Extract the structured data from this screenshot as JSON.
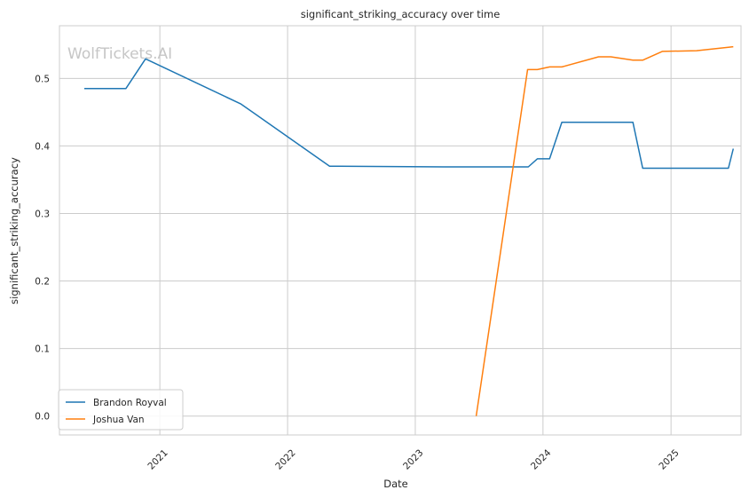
{
  "chart_data": {
    "type": "line",
    "title": "significant_striking_accuracy over time",
    "xlabel": "Date",
    "ylabel": "significant_striking_accuracy",
    "watermark": "WolfTickets.AI",
    "xlim": [
      "2020-03-20",
      "2025-07-20"
    ],
    "ylim": [
      -0.028,
      0.578
    ],
    "x_ticks": [
      {
        "date": "2021-01-01",
        "label": "2021"
      },
      {
        "date": "2022-01-01",
        "label": "2022"
      },
      {
        "date": "2023-01-01",
        "label": "2023"
      },
      {
        "date": "2024-01-01",
        "label": "2024"
      },
      {
        "date": "2025-01-01",
        "label": "2025"
      }
    ],
    "y_ticks": [
      {
        "value": 0.0,
        "label": "0.0"
      },
      {
        "value": 0.1,
        "label": "0.1"
      },
      {
        "value": 0.2,
        "label": "0.2"
      },
      {
        "value": 0.3,
        "label": "0.3"
      },
      {
        "value": 0.4,
        "label": "0.4"
      },
      {
        "value": 0.5,
        "label": "0.5"
      }
    ],
    "grid": true,
    "legend_position": "lower-left",
    "series": [
      {
        "name": "Brandon Royval",
        "color": "#1f77b4",
        "points": [
          [
            "2020-05-30",
            0.485
          ],
          [
            "2020-09-26",
            0.485
          ],
          [
            "2020-11-21",
            0.529
          ],
          [
            "2021-08-21",
            0.462
          ],
          [
            "2022-05-01",
            0.37
          ],
          [
            "2023-03-25",
            0.369
          ],
          [
            "2023-11-20",
            0.369
          ],
          [
            "2023-12-16",
            0.381
          ],
          [
            "2024-01-20",
            0.381
          ],
          [
            "2024-02-24",
            0.435
          ],
          [
            "2024-09-14",
            0.435
          ],
          [
            "2024-10-12",
            0.367
          ],
          [
            "2025-06-14",
            0.367
          ],
          [
            "2025-06-28",
            0.396
          ]
        ]
      },
      {
        "name": "Joshua Van",
        "color": "#ff7f0e",
        "points": [
          [
            "2023-06-24",
            0.0
          ],
          [
            "2023-11-18",
            0.513
          ],
          [
            "2023-12-16",
            0.513
          ],
          [
            "2024-01-20",
            0.517
          ],
          [
            "2024-02-24",
            0.517
          ],
          [
            "2024-06-08",
            0.532
          ],
          [
            "2024-07-13",
            0.532
          ],
          [
            "2024-09-14",
            0.527
          ],
          [
            "2024-10-12",
            0.527
          ],
          [
            "2024-12-07",
            0.54
          ],
          [
            "2025-03-15",
            0.541
          ],
          [
            "2025-06-14",
            0.546
          ],
          [
            "2025-06-28",
            0.547
          ]
        ]
      }
    ]
  }
}
